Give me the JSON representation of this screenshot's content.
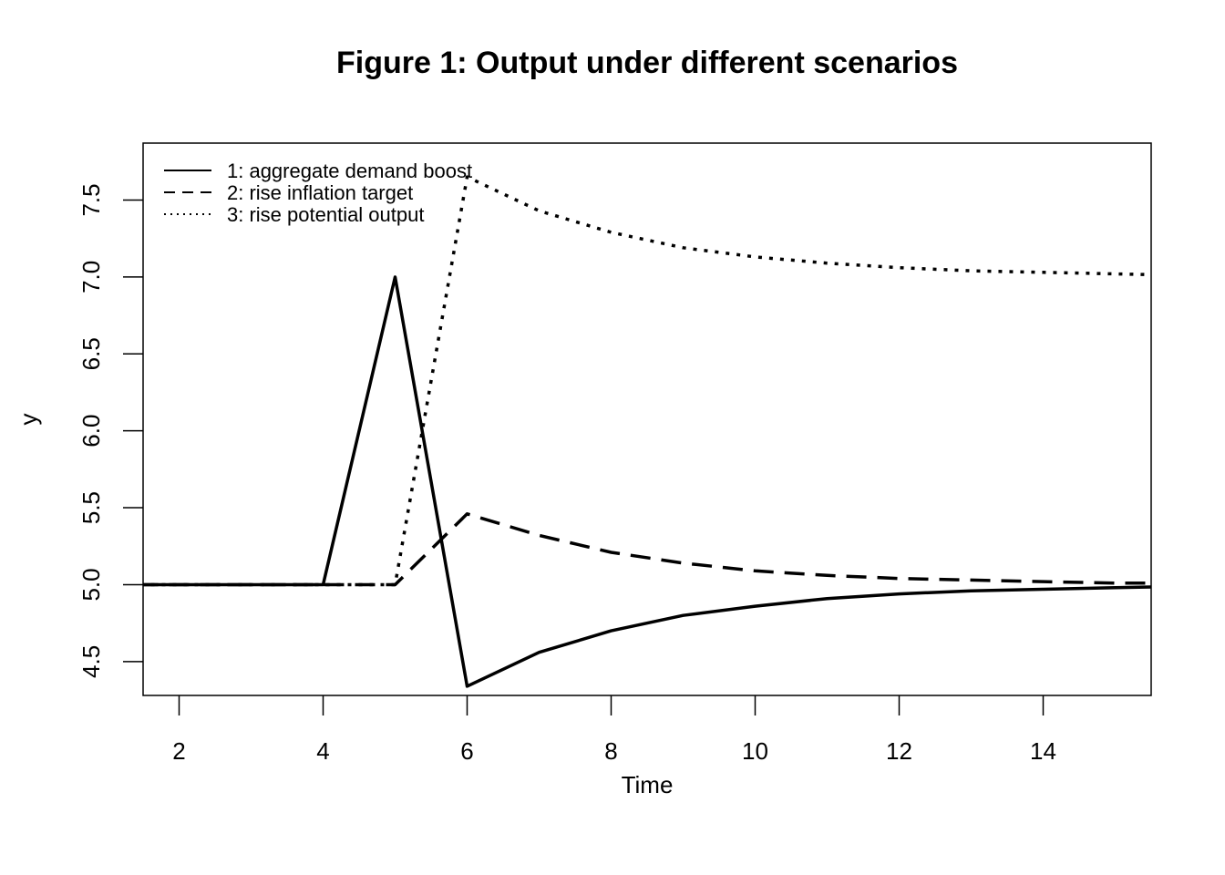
{
  "chart_data": {
    "type": "line",
    "title": "Figure 1: Output under different scenarios",
    "xlabel": "Time",
    "ylabel": "y",
    "xlim": [
      1.5,
      15.5
    ],
    "ylim": [
      4.28,
      7.87
    ],
    "x_ticks": [
      "2",
      "4",
      "6",
      "8",
      "10",
      "12",
      "14"
    ],
    "y_ticks": [
      "4.5",
      "5.0",
      "5.5",
      "6.0",
      "6.5",
      "7.0",
      "7.5"
    ],
    "grid": false,
    "legend_position": "top-left",
    "x": [
      1,
      2,
      3,
      4,
      5,
      6,
      7,
      8,
      9,
      10,
      11,
      12,
      13,
      14,
      15,
      16
    ],
    "series": [
      {
        "name": "1: aggregate demand boost",
        "line_style": "solid",
        "values": [
          5.0,
          5.0,
          5.0,
          5.0,
          7.0,
          4.34,
          4.56,
          4.7,
          4.8,
          4.86,
          4.91,
          4.94,
          4.96,
          4.97,
          4.98,
          4.99
        ]
      },
      {
        "name": "2: rise inflation target",
        "line_style": "dashed",
        "values": [
          5.0,
          5.0,
          5.0,
          5.0,
          5.0,
          5.46,
          5.32,
          5.21,
          5.14,
          5.09,
          5.06,
          5.04,
          5.03,
          5.02,
          5.01,
          5.01
        ]
      },
      {
        "name": "3: rise potential output",
        "line_style": "dotted",
        "values": [
          5.0,
          5.0,
          5.0,
          5.0,
          5.0,
          7.65,
          7.43,
          7.29,
          7.19,
          7.13,
          7.09,
          7.06,
          7.04,
          7.03,
          7.02,
          7.01
        ]
      }
    ]
  }
}
